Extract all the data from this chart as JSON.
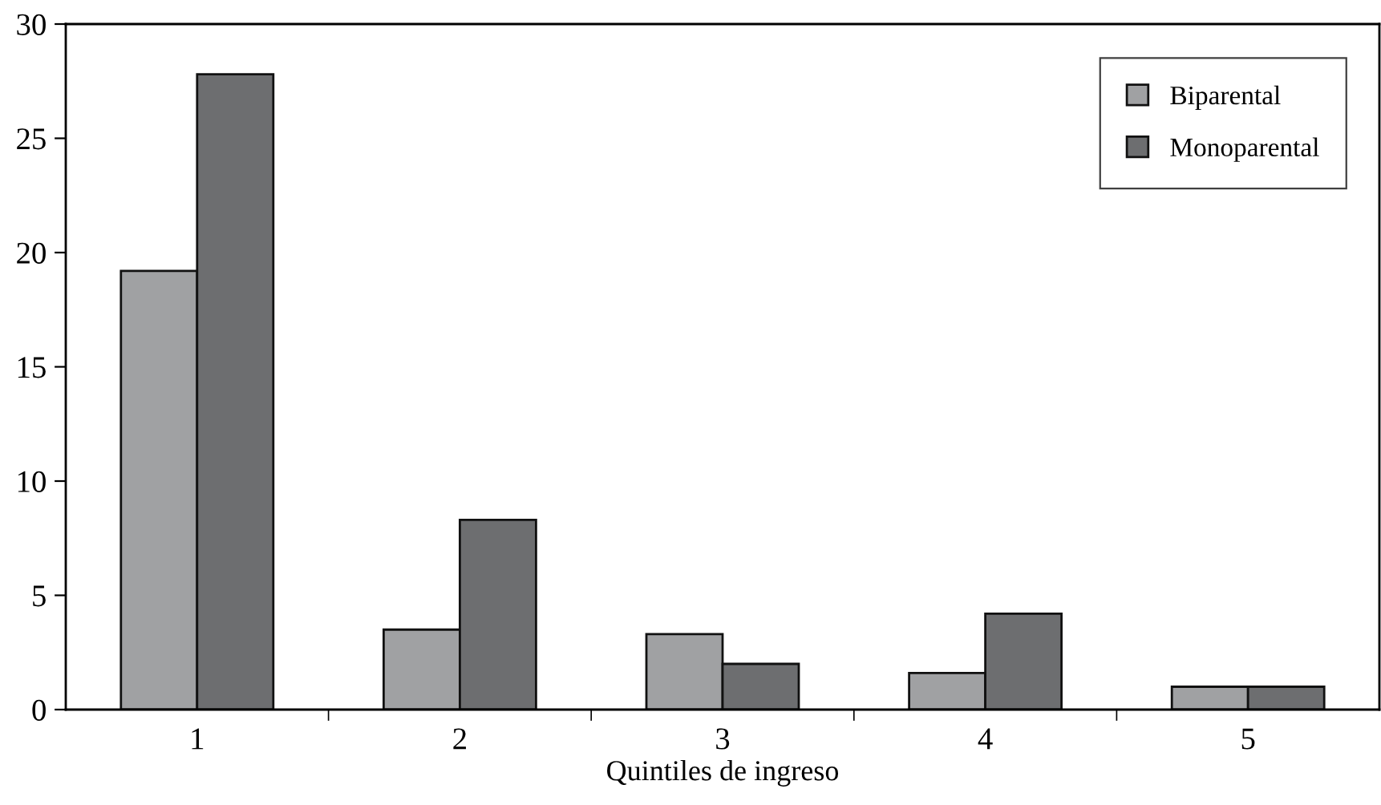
{
  "chart_data": {
    "type": "bar",
    "xlabel": "Quintiles de ingreso",
    "categories": [
      "1",
      "2",
      "3",
      "4",
      "5"
    ],
    "series": [
      {
        "name": "Biparental",
        "color": "#a0a1a3",
        "values": [
          19.2,
          3.5,
          3.3,
          1.6,
          1.0
        ]
      },
      {
        "name": "Monoparental",
        "color": "#6d6e70",
        "values": [
          27.8,
          8.3,
          2.0,
          4.2,
          1.0
        ]
      }
    ],
    "ylim": [
      0,
      30
    ],
    "yticks": [
      0,
      5,
      10,
      15,
      20,
      25,
      30
    ],
    "grid": false,
    "legend": "top right"
  }
}
